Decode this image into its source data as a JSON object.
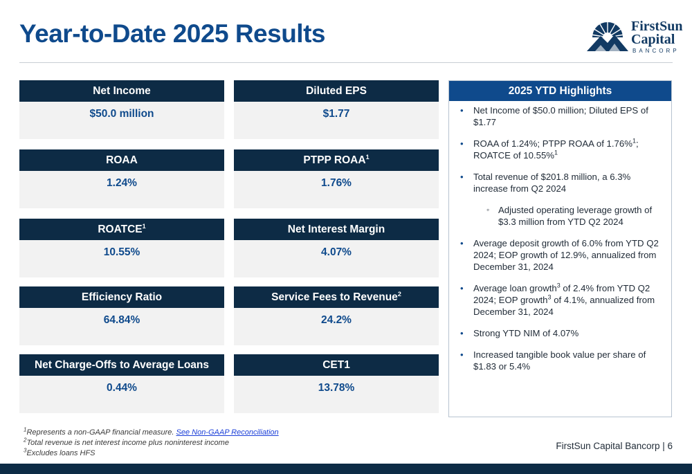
{
  "page": {
    "title": "Year-to-Date 2025 Results"
  },
  "logo": {
    "line1": "FirstSun",
    "line2": "Capital",
    "line3": "BANCORP",
    "icon": "sunburst-mountain-icon"
  },
  "metrics": [
    {
      "label": "Net Income",
      "sup": "",
      "value": "$50.0 million"
    },
    {
      "label": "Diluted EPS",
      "sup": "",
      "value": "$1.77"
    },
    {
      "label": "ROAA",
      "sup": "",
      "value": "1.24%"
    },
    {
      "label": "PTPP ROAA",
      "sup": "1",
      "value": "1.76%"
    },
    {
      "label": "ROATCE",
      "sup": "1",
      "value": "10.55%"
    },
    {
      "label": "Net Interest Margin",
      "sup": "",
      "value": "4.07%"
    },
    {
      "label": "Efficiency Ratio",
      "sup": "",
      "value": "64.84%"
    },
    {
      "label": "Service Fees to Revenue",
      "sup": "2",
      "value": "24.2%"
    },
    {
      "label": "Net Charge-Offs to Average Loans",
      "sup": "",
      "value": "0.44%"
    },
    {
      "label": "CET1",
      "sup": "",
      "value": "13.78%"
    }
  ],
  "highlights": {
    "title": "2025 YTD Highlights",
    "b1": "Net Income of $50.0 million; Diluted EPS of $1.77",
    "b2a": "ROAA of 1.24%; PTPP ROAA of 1.76%",
    "b2sup1": "1",
    "b2b": "; ROATCE of 10.55%",
    "b2sup2": "1",
    "b3": "Total revenue of $201.8 million, a 6.3% increase from Q2 2024",
    "b3sub": "Adjusted operating leverage growth of $3.3 million from YTD Q2 2024",
    "b4": "Average deposit growth of 6.0% from YTD Q2 2024; EOP growth of 12.9%, annualized from December 31, 2024",
    "b5a": "Average loan growth",
    "b5sup1": "3",
    "b5b": " of 2.4% from YTD Q2 2024; EOP growth",
    "b5sup2": "3",
    "b5c": " of 4.1%, annualized from December 31, 2024",
    "b6": "Strong YTD NIM of 4.07%",
    "b7": "Increased tangible book value per share of $1.83 or 5.4%"
  },
  "footnotes": {
    "f1sup": "1",
    "f1": "Represents a non-GAAP financial measure. ",
    "f1link": "See Non-GAAP Reconciliation",
    "f2sup": "2",
    "f2": "Total revenue is net interest income plus noninterest income",
    "f3sup": "3",
    "f3": "Excludes loans HFS"
  },
  "footer": {
    "label": "FirstSun Capital Bancorp  |  6"
  },
  "colors": {
    "title": "#0f4a8c",
    "header_dark": "#0d2b45",
    "header_blue": "#0f4a8c",
    "card_bg": "#f2f2f2"
  }
}
